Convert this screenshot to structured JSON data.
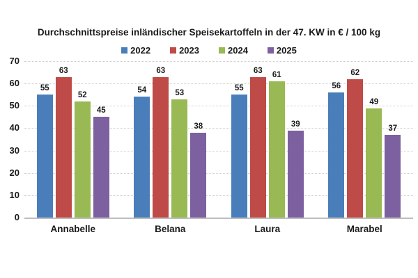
{
  "chart_data": {
    "type": "bar",
    "title": "Durchschnittspreise inländischer Speisekartoffeln in der 47. KW in € / 100 kg",
    "categories": [
      "Annabelle",
      "Belana",
      "Laura",
      "Marabel"
    ],
    "series": [
      {
        "name": "2022",
        "color": "#4a7ebb",
        "values": [
          55,
          54,
          55,
          56
        ]
      },
      {
        "name": "2023",
        "color": "#be4b48",
        "values": [
          63,
          63,
          63,
          62
        ]
      },
      {
        "name": "2024",
        "color": "#98b954",
        "values": [
          52,
          53,
          61,
          49
        ]
      },
      {
        "name": "2025",
        "color": "#7d60a0",
        "values": [
          45,
          38,
          39,
          37
        ]
      }
    ],
    "xlabel": "",
    "ylabel": "",
    "ylim": [
      0,
      70
    ],
    "yticks": [
      0,
      10,
      20,
      30,
      40,
      50,
      60,
      70
    ],
    "grid": "horizontal-dotted",
    "legend_position": "top-center",
    "data_labels": true
  },
  "styles": {
    "text_color": "#1a1a1a",
    "gridline_color": "#cfccc4",
    "axis_line_color": "#bdbdbd",
    "background_color": "#ffffff"
  }
}
